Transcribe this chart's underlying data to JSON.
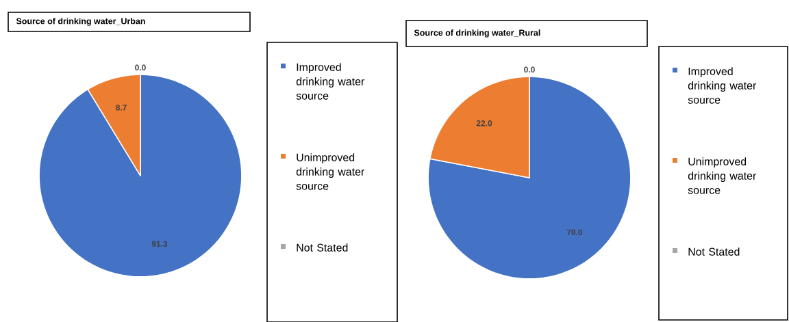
{
  "chart_data": [
    {
      "type": "pie",
      "title": "Source of drinking water_Urban",
      "categories": [
        "Improved drinking water source",
        "Unimproved drinking water source",
        "Not Stated"
      ],
      "values": [
        91.3,
        8.7,
        0.0
      ],
      "value_labels": [
        "91.3",
        "8.7",
        "0.0"
      ],
      "colors": [
        "#4472c4",
        "#ed7d31",
        "#a5a5a5"
      ],
      "legend": "right"
    },
    {
      "type": "pie",
      "title": "Source of drinking water_Rural",
      "categories": [
        "Improved drinking water source",
        "Unimproved drinking water source",
        "Not Stated"
      ],
      "values": [
        78.0,
        22.0,
        0.0
      ],
      "value_labels": [
        "78.0",
        "22.0",
        "0.0"
      ],
      "colors": [
        "#4472c4",
        "#ed7d31",
        "#a5a5a5"
      ],
      "legend": "right"
    }
  ]
}
